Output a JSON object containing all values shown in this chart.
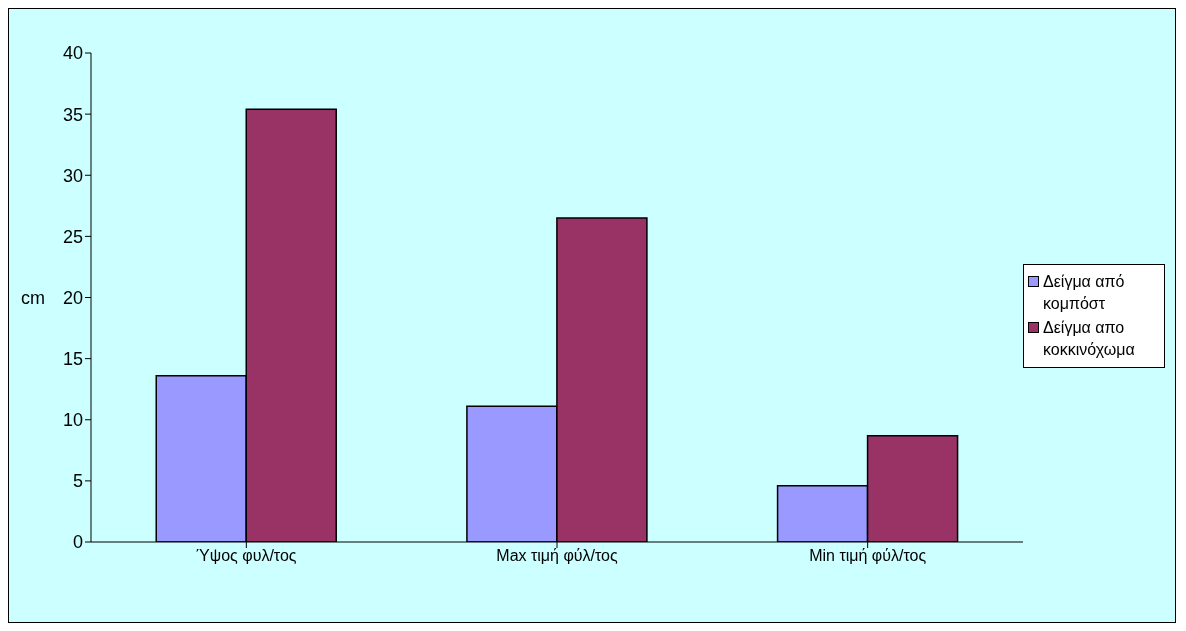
{
  "chart_data": {
    "type": "bar",
    "ylabel": "cm",
    "categories": [
      "Ύψος φυλ/τος",
      "Max τιμή φύλ/τος",
      "Min τιμή φύλ/τος"
    ],
    "series": [
      {
        "name": "Δείγμα από κομπόστ",
        "color": "#9999ff",
        "values": [
          13.6,
          11.1,
          4.6
        ]
      },
      {
        "name": "Δείγμα απο κοκκινόχωμα",
        "color": "#993366",
        "values": [
          35.4,
          26.5,
          8.7
        ]
      }
    ],
    "ylim": [
      0,
      40
    ],
    "yticks": [
      0,
      5,
      10,
      15,
      20,
      25,
      30,
      35,
      40
    ],
    "grid": false,
    "legend": "right"
  }
}
